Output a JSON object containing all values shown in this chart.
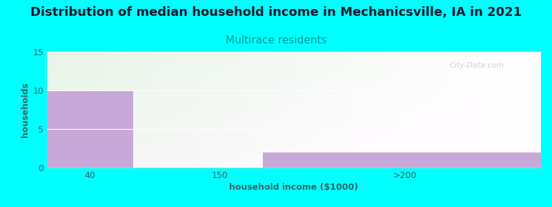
{
  "title": "Distribution of median household income in Mechanicsville, IA in 2021",
  "subtitle": "Multirace residents",
  "xlabel": "household income ($1000)",
  "ylabel": "households",
  "background_color": "#00FFFF",
  "bar_color": "#C8A8D8",
  "yticks": [
    0,
    5,
    10,
    15
  ],
  "ylim": [
    0,
    15
  ],
  "bars": [
    {
      "x_left": 10,
      "x_right": 80,
      "height": 10
    },
    {
      "x_left": 185,
      "x_right": 410,
      "height": 2
    }
  ],
  "xtick_positions": [
    45,
    150,
    300
  ],
  "xtick_labels": [
    "40",
    "150",
    ">200"
  ],
  "xlim": [
    10,
    410
  ],
  "watermark": "City-Data.com",
  "title_fontsize": 13,
  "subtitle_fontsize": 11,
  "subtitle_color": "#009999",
  "title_color": "#1a1a2e",
  "axis_label_fontsize": 9,
  "tick_fontsize": 9,
  "tick_color": "#336666",
  "label_color": "#336666"
}
